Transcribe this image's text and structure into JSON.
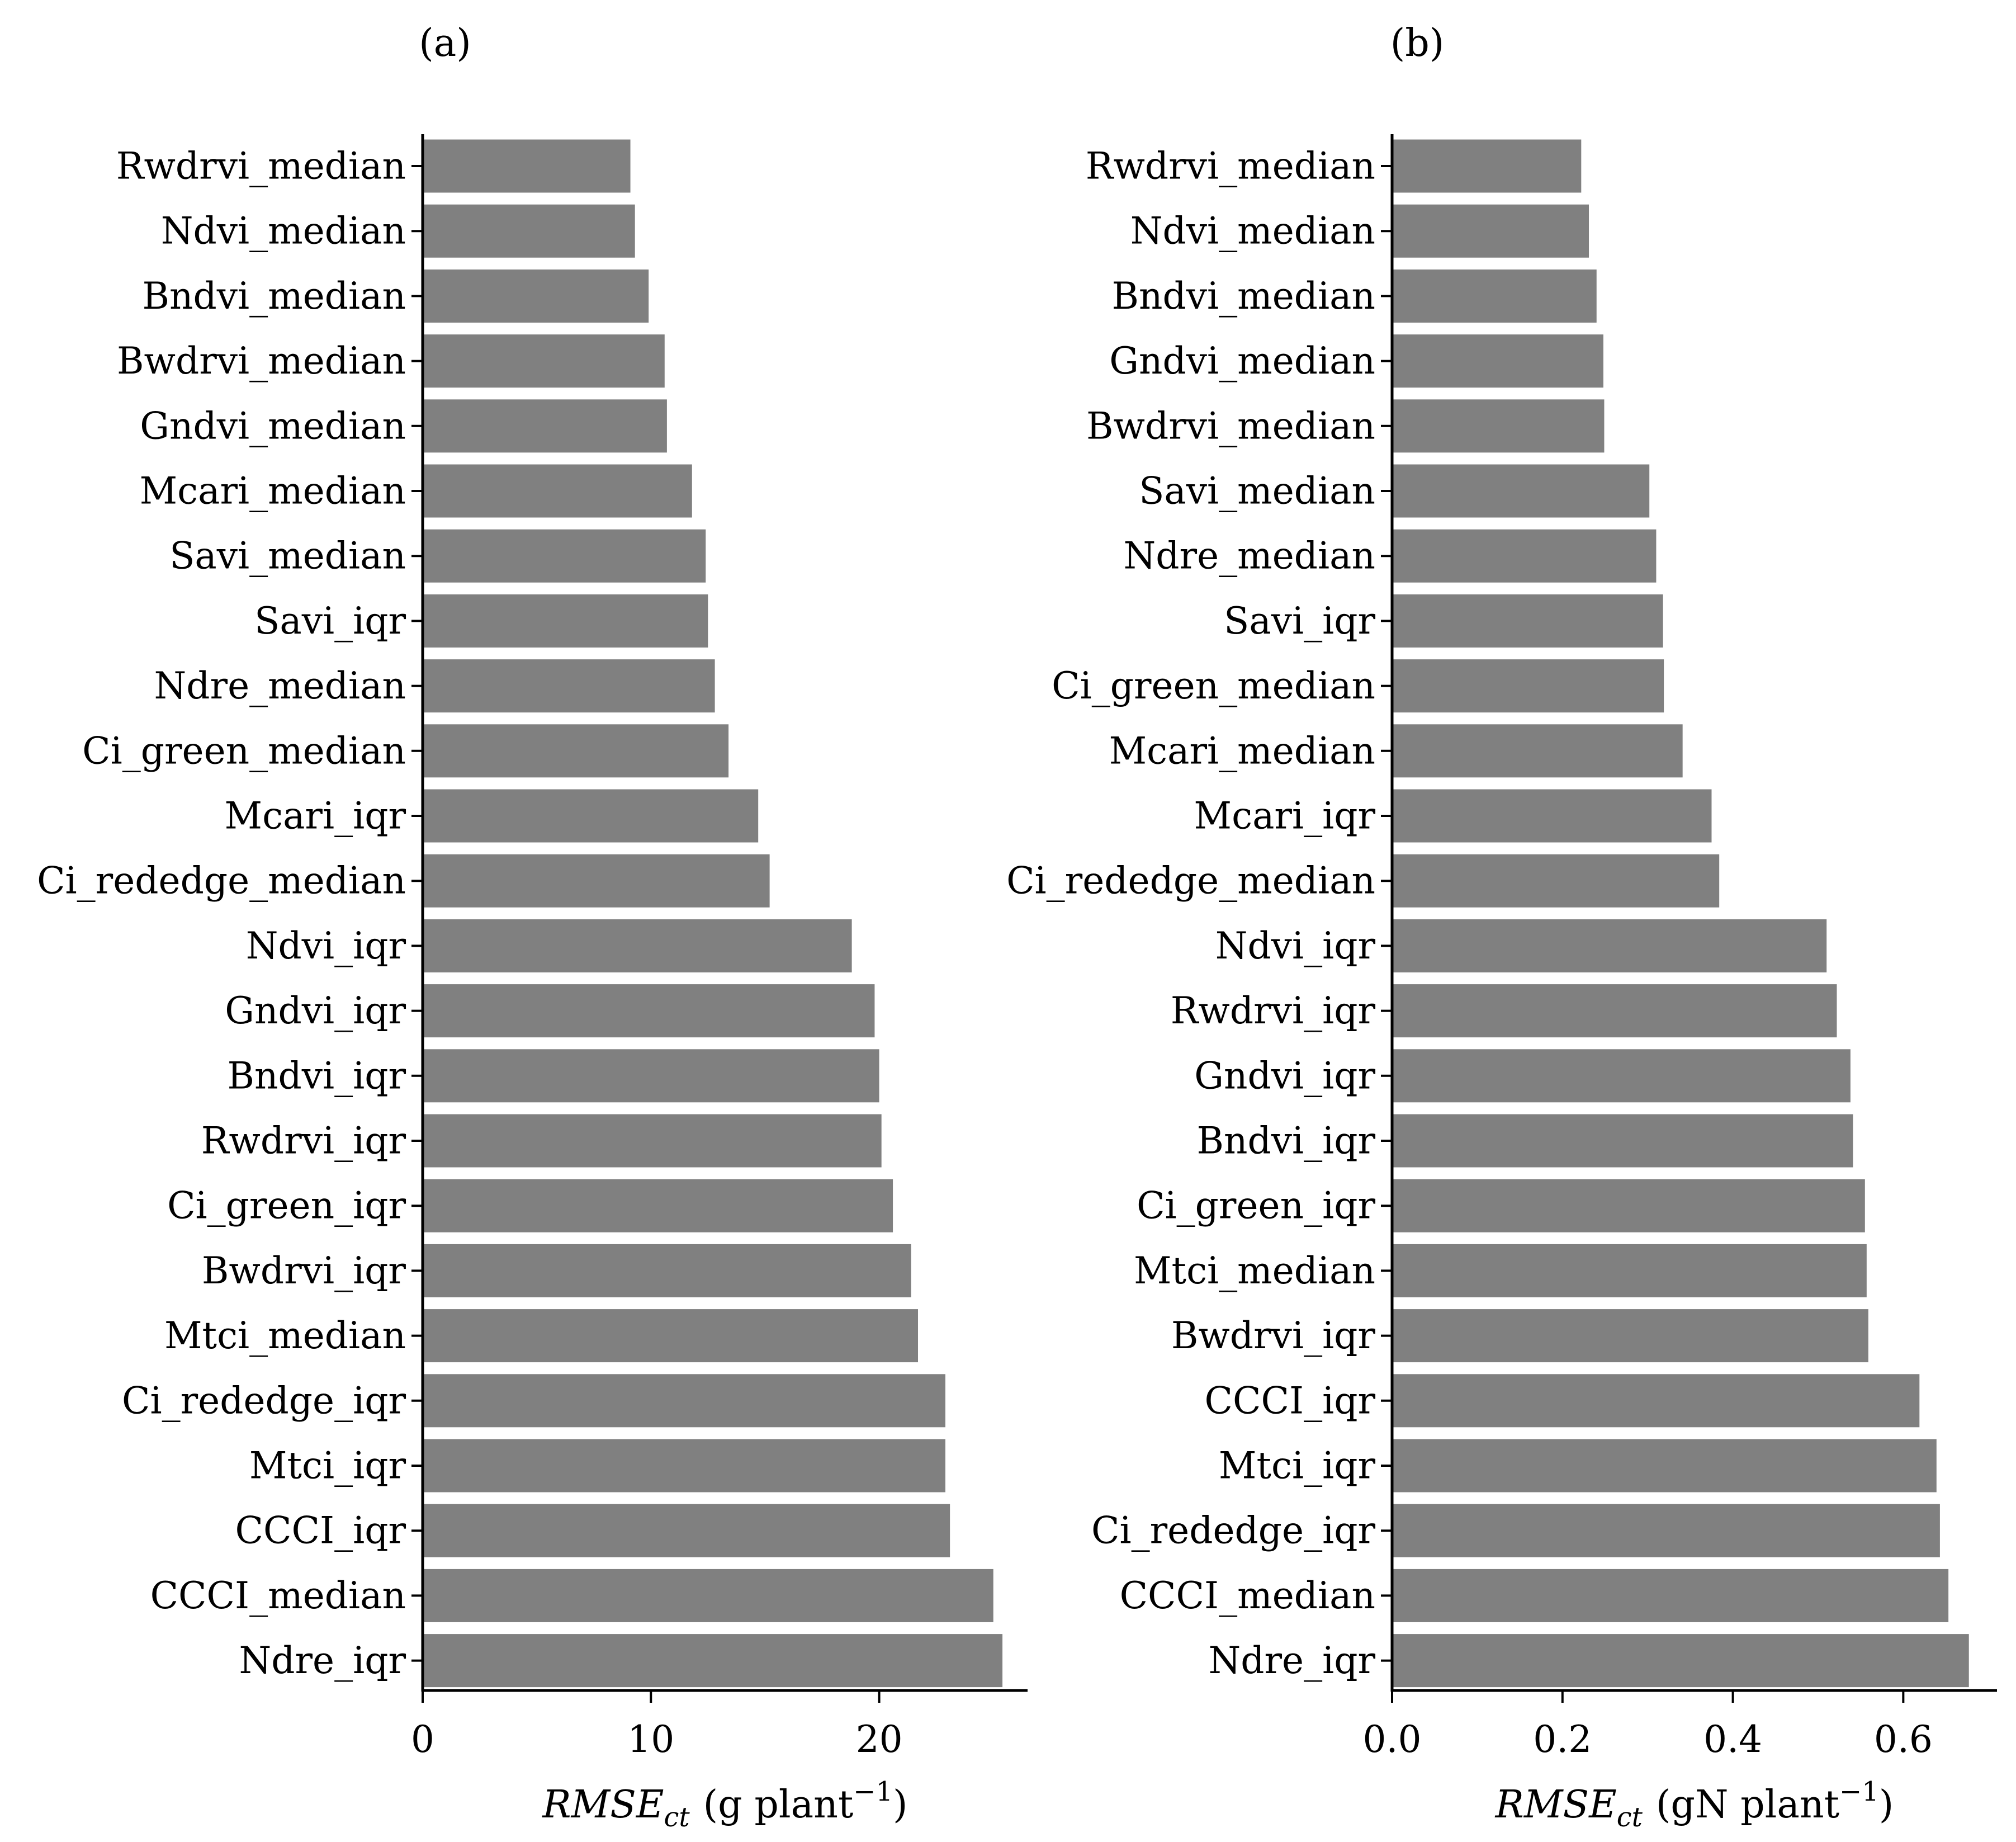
{
  "chart_data": [
    {
      "type": "bar",
      "orientation": "horizontal",
      "panel_label": "(a)",
      "xlabel": {
        "base": "RMSE",
        "sub": "ct",
        "units_prefix": "(g plant",
        "exp": "−1",
        "units_suffix": ")"
      },
      "xlim": [
        0,
        26.5
      ],
      "xticks": [
        0,
        10,
        20
      ],
      "xtick_labels": [
        "0",
        "10",
        "20"
      ],
      "bar_color": "#808080",
      "categories": [
        "Rwdrvi_median",
        "Ndvi_median",
        "Bndvi_median",
        "Bwdrvi_median",
        "Gndvi_median",
        "Mcari_median",
        "Savi_median",
        "Savi_iqr",
        "Ndre_median",
        "Ci_green_median",
        "Mcari_iqr",
        "Ci_rededge_median",
        "Ndvi_iqr",
        "Gndvi_iqr",
        "Bndvi_iqr",
        "Rwdrvi_iqr",
        "Ci_green_iqr",
        "Bwdrvi_iqr",
        "Mtci_median",
        "Ci_rededge_iqr",
        "Mtci_iqr",
        "CCCI_iqr",
        "CCCI_median",
        "Ndre_iqr"
      ],
      "values": [
        9.1,
        9.3,
        9.9,
        10.6,
        10.7,
        11.8,
        12.4,
        12.5,
        12.8,
        13.4,
        14.7,
        15.2,
        18.8,
        19.8,
        20.0,
        20.1,
        20.6,
        21.4,
        21.7,
        22.9,
        22.9,
        23.1,
        25.0,
        25.4
      ]
    },
    {
      "type": "bar",
      "orientation": "horizontal",
      "panel_label": "(b)",
      "xlabel": {
        "base": "RMSE",
        "sub": "ct",
        "units_prefix": "(gN plant",
        "exp": "−1",
        "units_suffix": ")"
      },
      "xlim": [
        0,
        0.71
      ],
      "xticks": [
        0.0,
        0.2,
        0.4,
        0.6
      ],
      "xtick_labels": [
        "0.0",
        "0.2",
        "0.4",
        "0.6"
      ],
      "bar_color": "#808080",
      "categories": [
        "Rwdrvi_median",
        "Ndvi_median",
        "Bndvi_median",
        "Gndvi_median",
        "Bwdrvi_median",
        "Savi_median",
        "Ndre_median",
        "Savi_iqr",
        "Ci_green_median",
        "Mcari_median",
        "Mcari_iqr",
        "Ci_rededge_median",
        "Ndvi_iqr",
        "Rwdrvi_iqr",
        "Gndvi_iqr",
        "Bndvi_iqr",
        "Ci_green_iqr",
        "Mtci_median",
        "Bwdrvi_iqr",
        "CCCI_iqr",
        "Mtci_iqr",
        "Ci_rededge_iqr",
        "CCCI_median",
        "Ndre_iqr"
      ],
      "values": [
        0.222,
        0.231,
        0.24,
        0.248,
        0.249,
        0.302,
        0.31,
        0.318,
        0.319,
        0.341,
        0.375,
        0.384,
        0.51,
        0.522,
        0.538,
        0.541,
        0.555,
        0.557,
        0.559,
        0.619,
        0.639,
        0.643,
        0.653,
        0.677
      ]
    }
  ]
}
